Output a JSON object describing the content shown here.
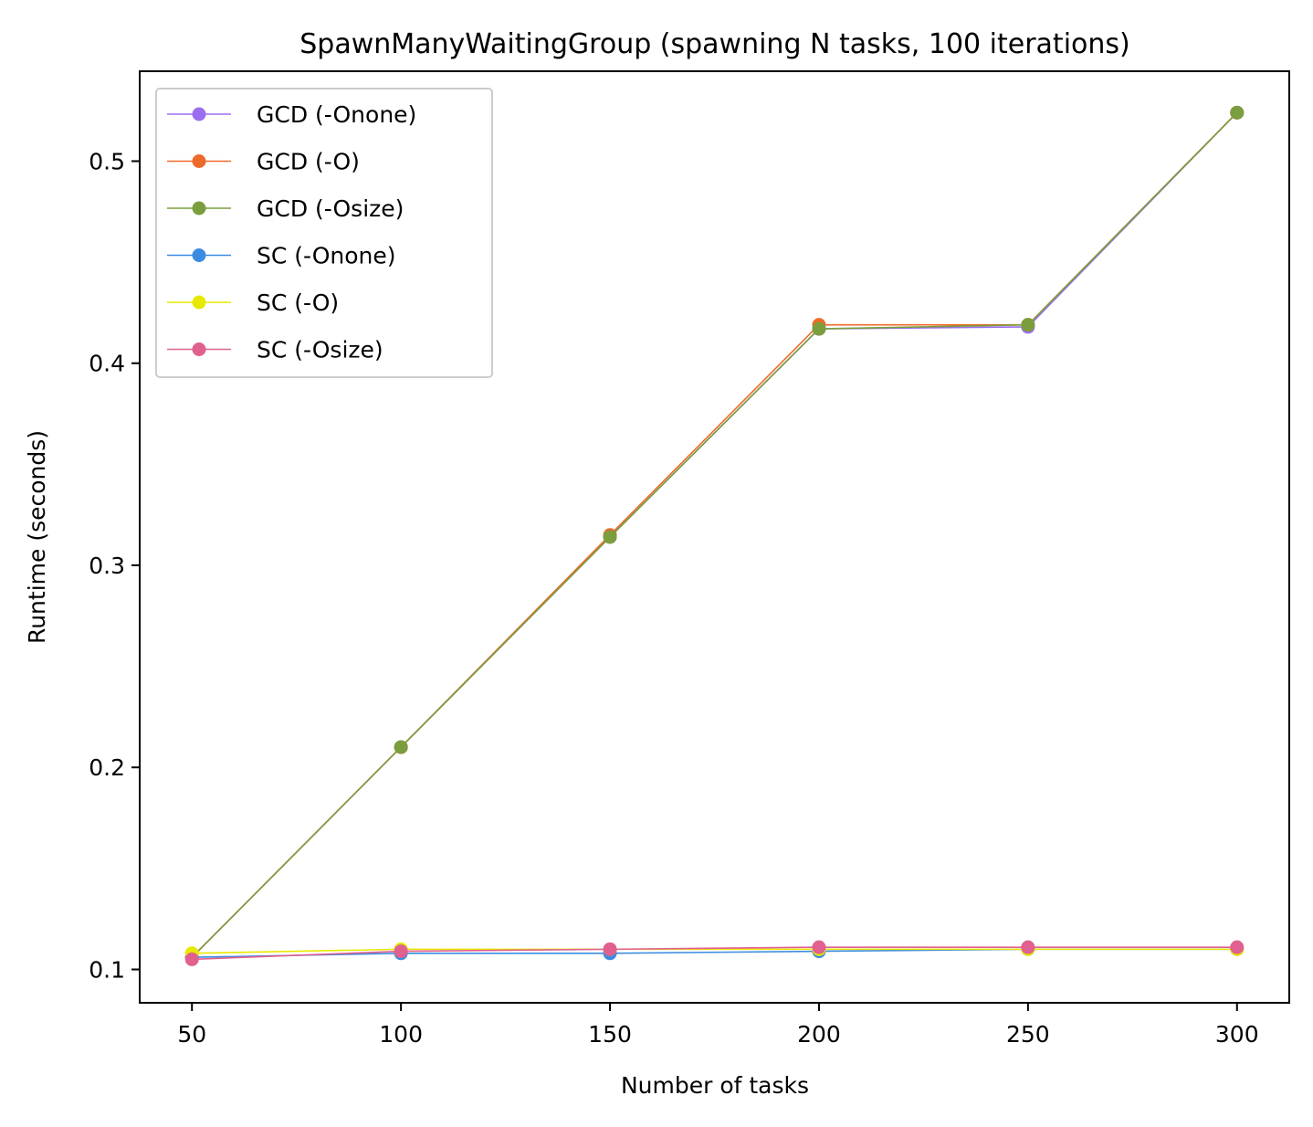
{
  "chart_data": {
    "type": "line",
    "title": "SpawnManyWaitingGroup (spawning N tasks, 100 iterations)",
    "xlabel": "Number of tasks",
    "ylabel": "Runtime (seconds)",
    "x": [
      50,
      100,
      150,
      200,
      250,
      300
    ],
    "xlim": [
      37.5,
      312.5
    ],
    "ylim": [
      0.0835,
      0.5445
    ],
    "x_ticks": [
      50,
      100,
      150,
      200,
      250,
      300
    ],
    "y_ticks": [
      0.1,
      0.2,
      0.3,
      0.4,
      0.5
    ],
    "x_tick_labels": [
      "50",
      "100",
      "150",
      "200",
      "250",
      "300"
    ],
    "y_tick_labels": [
      "0.1",
      "0.2",
      "0.3",
      "0.4",
      "0.5"
    ],
    "grid": false,
    "legend_position": "top-left",
    "series": [
      {
        "name": "GCD (-Onone)",
        "color": "#9b6ef0",
        "values": [
          0.106,
          0.21,
          0.314,
          0.417,
          0.418,
          0.524
        ]
      },
      {
        "name": "GCD (-O)",
        "color": "#ee6a2a",
        "values": [
          0.106,
          0.21,
          0.315,
          0.419,
          0.419,
          0.524
        ]
      },
      {
        "name": "GCD (-Osize)",
        "color": "#7a9e3e",
        "values": [
          0.106,
          0.21,
          0.314,
          0.417,
          0.419,
          0.524
        ]
      },
      {
        "name": "SC (-Onone)",
        "color": "#3b8ce0",
        "values": [
          0.106,
          0.108,
          0.108,
          0.109,
          0.11,
          0.11
        ]
      },
      {
        "name": "SC (-O)",
        "color": "#e8e800",
        "values": [
          0.108,
          0.11,
          0.11,
          0.11,
          0.11,
          0.11
        ]
      },
      {
        "name": "SC (-Osize)",
        "color": "#e06090",
        "values": [
          0.105,
          0.109,
          0.11,
          0.111,
          0.111,
          0.111
        ]
      }
    ]
  }
}
